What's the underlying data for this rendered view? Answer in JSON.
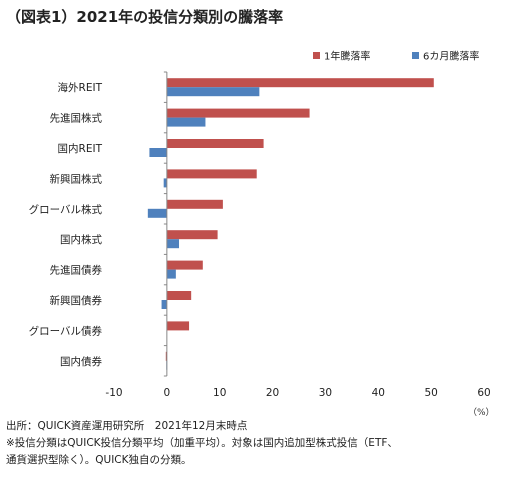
{
  "title": "（図表1）2021年の投信分類別の騰落率",
  "unit_label": "（%）",
  "footnotes": [
    "出所：QUICK資産運用研究所　2021年12月末時点",
    "※投信分類はQUICK投信分類平均（加重平均）。対象は国内追加型株式投信（ETF、",
    "通貨選択型除く）。QUICK独自の分類。"
  ],
  "colors": {
    "series_1y": "#c0504d",
    "series_6m": "#4f81bd",
    "axis": "#888888"
  },
  "chart_data": {
    "type": "bar",
    "orientation": "horizontal",
    "categories": [
      "海外REIT",
      "先進国株式",
      "国内REIT",
      "新興国株式",
      "グローバル株式",
      "国内株式",
      "先進国債券",
      "新興国債券",
      "グローバル債券",
      "国内債券"
    ],
    "series": [
      {
        "name": "1年騰落率",
        "values": [
          50.5,
          27.0,
          18.3,
          17.0,
          10.6,
          9.6,
          6.8,
          4.6,
          4.2,
          -0.2
        ]
      },
      {
        "name": "6カ月騰落率",
        "values": [
          17.5,
          7.3,
          -3.3,
          -0.6,
          -3.6,
          2.3,
          1.7,
          -1.0,
          0.0,
          -0.1
        ]
      }
    ],
    "xlim": [
      -10,
      60
    ],
    "xticks": [
      -10,
      0,
      10,
      20,
      30,
      40,
      50,
      60
    ],
    "legend_position": "top-right",
    "grid": false
  }
}
